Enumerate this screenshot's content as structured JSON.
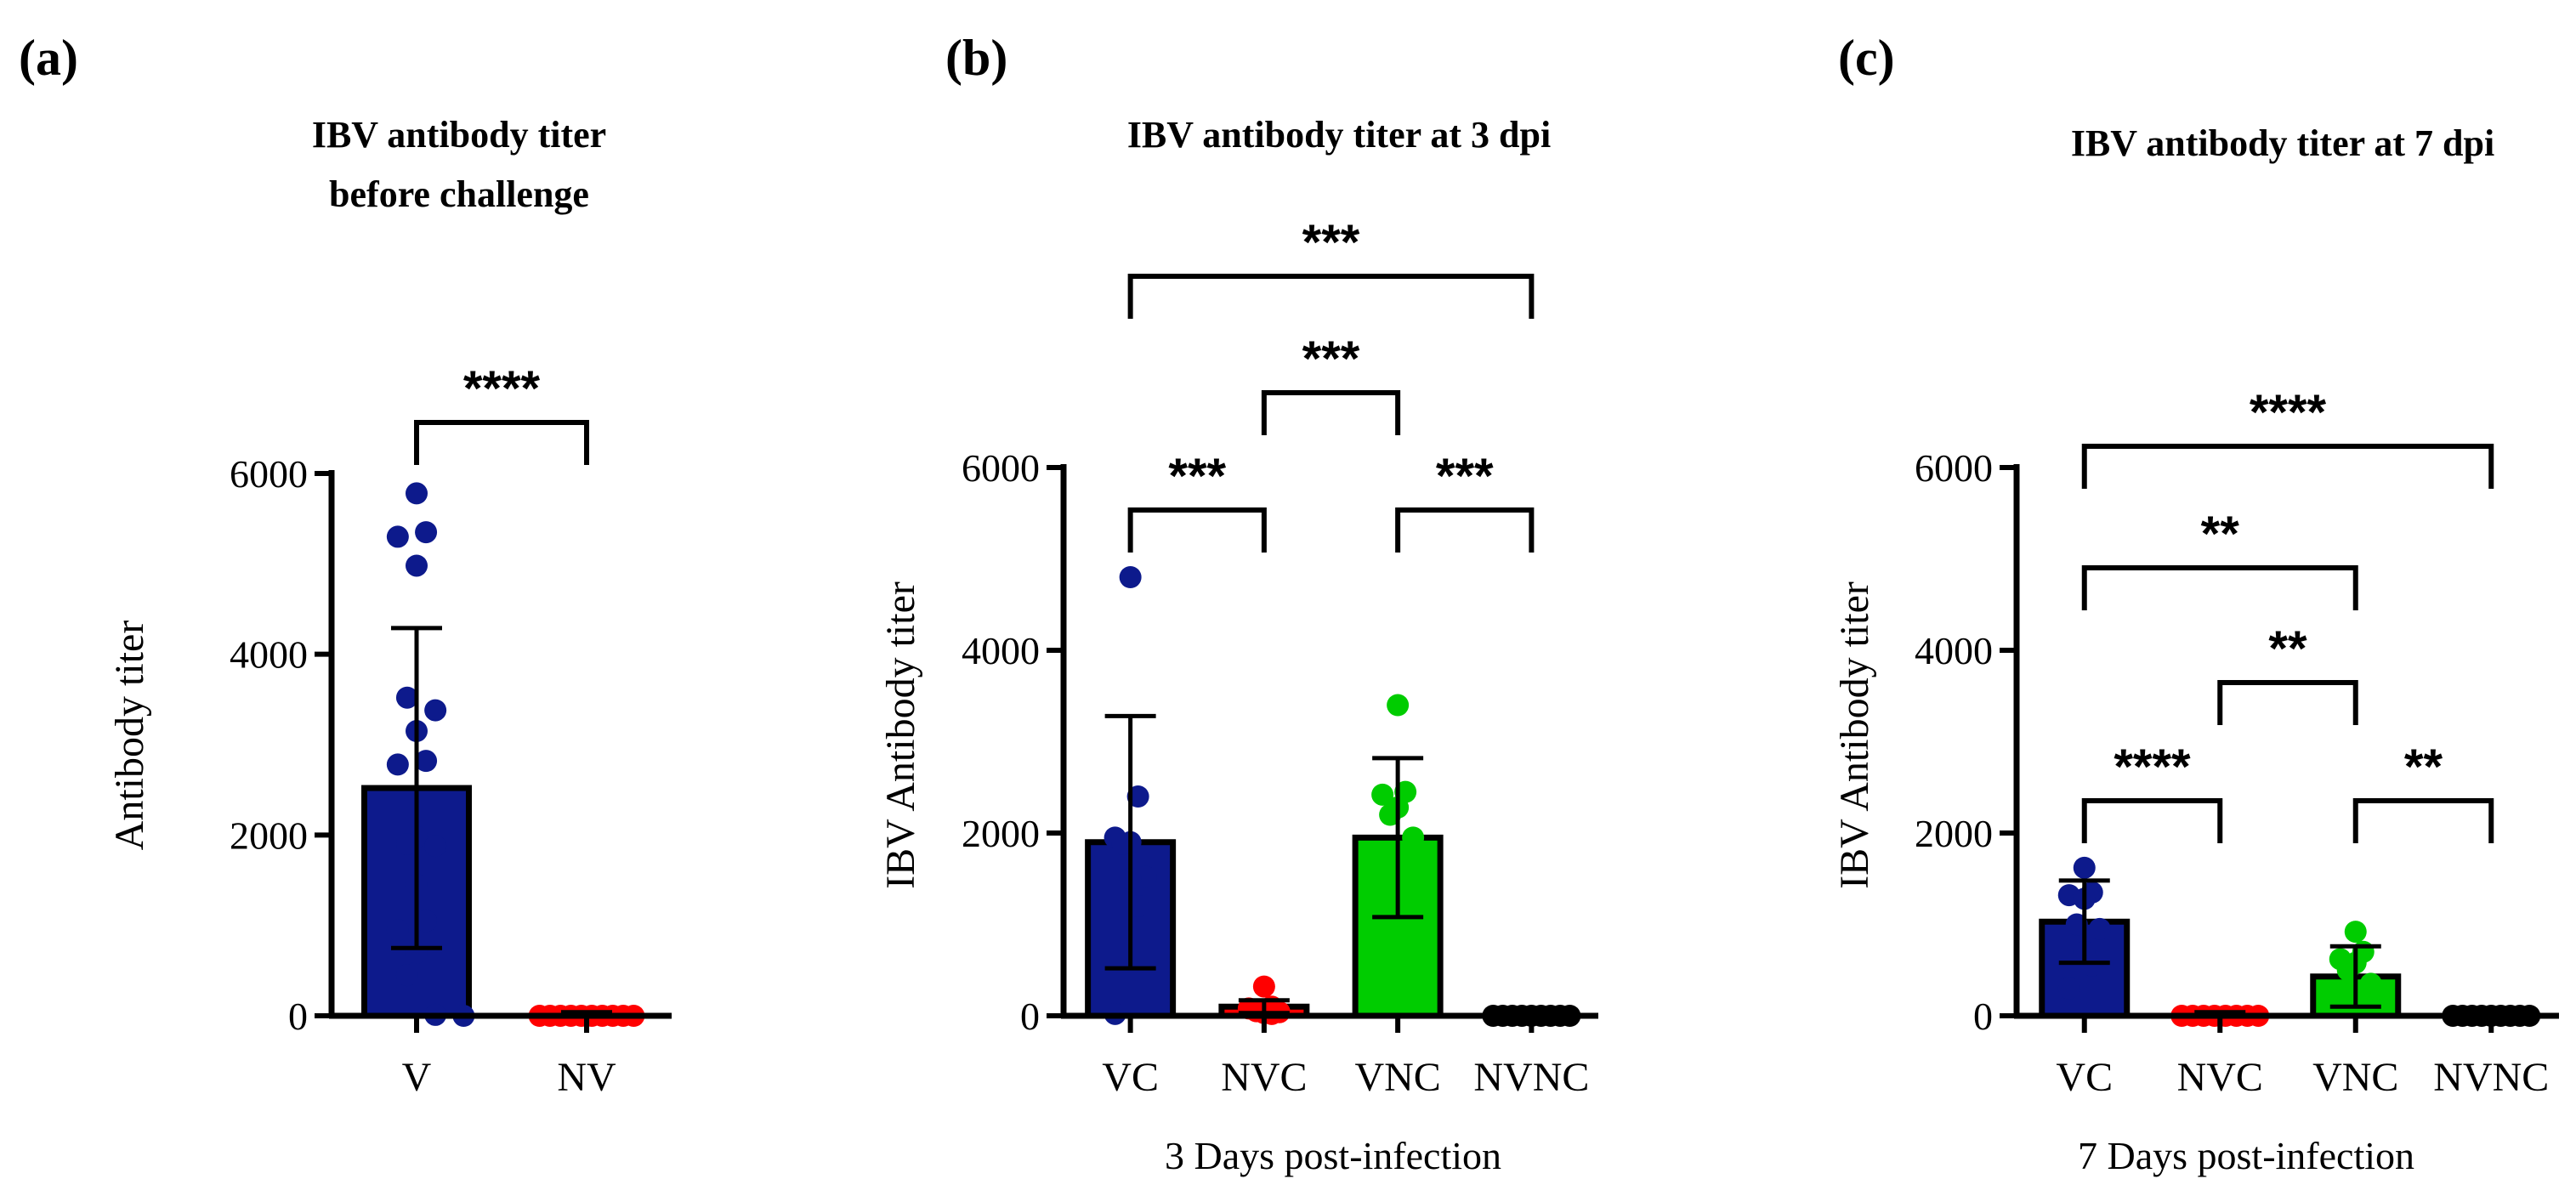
{
  "chart_data": [
    {
      "type": "bar",
      "panel_label": "(a)",
      "title_lines": [
        "IBV antibody titer",
        "before challenge"
      ],
      "ylabel": "Antibody titer",
      "xlabel": "",
      "ylim": [
        0,
        6000
      ],
      "yticks": [
        0,
        2000,
        4000,
        6000
      ],
      "categories": [
        "V",
        "NV"
      ],
      "colors": [
        "#0d1a8c",
        "#ff0000"
      ],
      "means": [
        2520,
        20
      ],
      "sd": [
        1770,
        20
      ],
      "points": [
        [
          5780,
          5350,
          5300,
          4980,
          3520,
          3380,
          3150,
          2820,
          2780,
          1980,
          1900,
          1880,
          1450,
          1050,
          950,
          700,
          450,
          10,
          0
        ],
        [
          0,
          0,
          0,
          0,
          0,
          0,
          0,
          0,
          0,
          0
        ]
      ],
      "comparisons": [
        {
          "from": 0,
          "to": 1,
          "label": "****"
        }
      ]
    },
    {
      "type": "bar",
      "panel_label": "(b)",
      "title_lines": [
        "IBV antibody titer at 3 dpi"
      ],
      "ylabel": "IBV Antibody titer",
      "xlabel": "3 Days post-infection",
      "ylim": [
        0,
        6000
      ],
      "yticks": [
        0,
        2000,
        4000,
        6000
      ],
      "categories": [
        "VC",
        "NVC",
        "VNC",
        "NVNC"
      ],
      "colors": [
        "#0d1a8c",
        "#ff0000",
        "#00cc00",
        "#000000"
      ],
      "means": [
        1900,
        100,
        1950,
        0
      ],
      "sd": [
        1380,
        70,
        870,
        0
      ],
      "points": [
        [
          4800,
          2400,
          1950,
          1900,
          1880,
          1520,
          1500,
          1200,
          20
        ],
        [
          320,
          100,
          80,
          50,
          50,
          40,
          30,
          20
        ],
        [
          3400,
          2450,
          2420,
          2280,
          2200,
          1950,
          1250,
          1050,
          800
        ],
        [
          0,
          0,
          0,
          0,
          0,
          0,
          0,
          0,
          0
        ]
      ],
      "comparisons": [
        {
          "from": 0,
          "to": 3,
          "label": "***"
        },
        {
          "from": 1,
          "to": 2,
          "label": "***"
        },
        {
          "from": 0,
          "to": 1,
          "label": "***"
        },
        {
          "from": 2,
          "to": 3,
          "label": "***"
        }
      ]
    },
    {
      "type": "bar",
      "panel_label": "(c)",
      "title_lines": [
        "IBV antibody titer at 7 dpi"
      ],
      "ylabel": "IBV Antibody titer",
      "xlabel": "7 Days post-infection",
      "ylim": [
        0,
        6000
      ],
      "yticks": [
        0,
        2000,
        4000,
        6000
      ],
      "categories": [
        "VC",
        "NVC",
        "VNC",
        "NVNC"
      ],
      "colors": [
        "#0d1a8c",
        "#ff0000",
        "#00cc00",
        "#000000"
      ],
      "means": [
        1030,
        20,
        430,
        0
      ],
      "sd": [
        450,
        20,
        330,
        0
      ],
      "points": [
        [
          1620,
          1350,
          1320,
          1280,
          1000,
          950,
          700,
          550,
          300
        ],
        [
          0,
          0,
          0,
          0,
          0,
          0,
          0,
          0
        ],
        [
          920,
          700,
          620,
          580,
          500,
          350,
          200,
          150,
          100
        ],
        [
          0,
          0,
          0,
          0,
          0,
          0,
          0,
          0,
          0
        ]
      ],
      "comparisons": [
        {
          "from": 0,
          "to": 3,
          "label": "****"
        },
        {
          "from": 0,
          "to": 2,
          "label": "**"
        },
        {
          "from": 1,
          "to": 2,
          "label": "**"
        },
        {
          "from": 0,
          "to": 1,
          "label": "****"
        },
        {
          "from": 2,
          "to": 3,
          "label": "**"
        }
      ]
    }
  ]
}
